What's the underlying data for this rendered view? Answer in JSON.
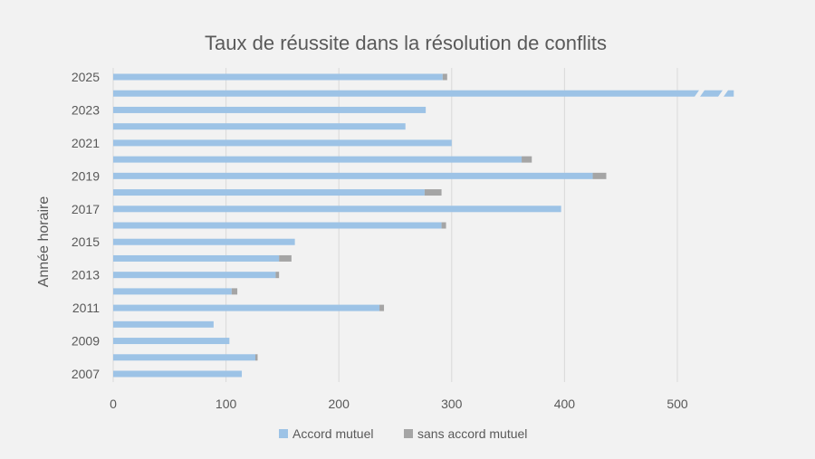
{
  "chart_data": {
    "type": "bar",
    "orientation": "horizontal",
    "stacked": true,
    "title": "Taux de réussite dans la résolution de conflits",
    "xlabel": "",
    "ylabel": "Année horaire",
    "xlim": [
      0,
      550
    ],
    "x_ticks": [
      "0",
      "100",
      "200",
      "300",
      "400",
      "500"
    ],
    "x_tick_values": [
      0,
      100,
      200,
      300,
      400,
      500
    ],
    "grid": "vertical",
    "legend_position": "bottom",
    "categories": [
      "2007",
      "2008",
      "2009",
      "2010",
      "2011",
      "2012",
      "2013",
      "2014",
      "2015",
      "2016",
      "2017",
      "2018",
      "2019",
      "2020",
      "2021",
      "2022",
      "2023",
      "2024",
      "2025"
    ],
    "category_labels": [
      "2007",
      "",
      "2009",
      "",
      "2011",
      "",
      "2013",
      "",
      "2015",
      "",
      "2017",
      "",
      "2019",
      "",
      "2021",
      "",
      "2023",
      "",
      "2025"
    ],
    "series": [
      {
        "name": "Accord mutuel",
        "color": "#9dc3e6",
        "values": [
          114,
          126,
          103,
          89,
          236,
          105,
          144,
          147,
          161,
          291,
          397,
          276,
          425,
          362,
          300,
          259,
          277,
          550,
          292
        ]
      },
      {
        "name": "sans accord mutuel",
        "color": "#a5a5a5",
        "values": [
          0,
          2,
          0,
          0,
          4,
          5,
          3,
          11,
          0,
          4,
          0,
          15,
          12,
          9,
          0,
          0,
          0,
          0,
          4
        ]
      }
    ],
    "broken_bar_category": "2024"
  }
}
